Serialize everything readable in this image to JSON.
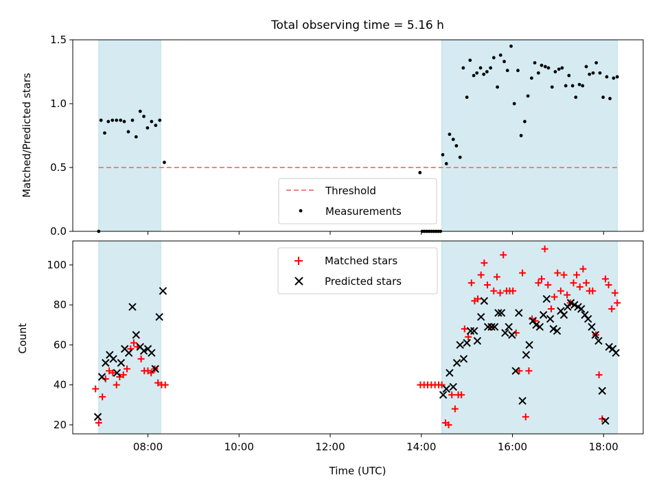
{
  "title": "Total observing time = 5.16 h",
  "chart_data": [
    {
      "type": "scatter",
      "ylabel": "Matched/Predicted stars",
      "xlabel": "",
      "xlim": [
        6.35,
        18.87
      ],
      "ylim": [
        0,
        1.5
      ],
      "yticks": [
        "0.0",
        "0.5",
        "1.0",
        "1.5"
      ],
      "shaded_intervals": [
        [
          6.92,
          8.28
        ],
        [
          14.45,
          18.3
        ]
      ],
      "shade_color": "#d5ebf1",
      "threshold": {
        "name": "Threshold",
        "y": 0.5,
        "x_range": [
          6.92,
          18.3
        ],
        "color": "#f08080"
      },
      "legend": {
        "placement": "lower-center",
        "entries": [
          "Threshold",
          "Measurements"
        ]
      },
      "series": [
        {
          "name": "Measurements",
          "color": "#000000",
          "x": [
            6.92,
            6.97,
            7.05,
            7.13,
            7.22,
            7.31,
            7.4,
            7.48,
            7.57,
            7.66,
            7.74,
            7.83,
            7.91,
            7.99,
            8.08,
            8.17,
            8.26,
            8.36,
            13.97,
            14.02,
            14.07,
            14.12,
            14.17,
            14.22,
            14.27,
            14.32,
            14.37,
            14.42,
            14.47,
            14.55,
            14.62,
            14.7,
            14.77,
            14.85,
            14.92,
            15.0,
            15.07,
            15.15,
            15.22,
            15.3,
            15.37,
            15.44,
            15.52,
            15.59,
            15.67,
            15.74,
            15.82,
            15.89,
            15.97,
            16.04,
            16.12,
            16.19,
            16.27,
            16.34,
            16.42,
            16.49,
            16.57,
            16.64,
            16.72,
            16.79,
            16.87,
            16.94,
            17.02,
            17.09,
            17.17,
            17.24,
            17.32,
            17.39,
            17.47,
            17.54,
            17.62,
            17.69,
            17.77,
            17.84,
            17.92,
            17.99,
            18.07,
            18.14,
            18.22,
            18.3
          ],
          "y": [
            0.0,
            0.87,
            0.77,
            0.86,
            0.87,
            0.87,
            0.87,
            0.86,
            0.78,
            0.87,
            0.74,
            0.94,
            0.9,
            0.81,
            0.86,
            0.83,
            0.87,
            0.54,
            0.46,
            0.0,
            0.0,
            0.0,
            0.0,
            0.0,
            0.0,
            0.0,
            0.0,
            0.0,
            0.6,
            0.53,
            0.76,
            0.72,
            0.67,
            0.58,
            1.28,
            1.05,
            1.34,
            1.22,
            1.24,
            1.28,
            1.23,
            1.25,
            1.28,
            1.36,
            1.13,
            1.38,
            1.33,
            1.26,
            1.45,
            1.0,
            1.26,
            0.75,
            0.86,
            1.06,
            1.2,
            1.32,
            1.24,
            1.3,
            1.29,
            1.28,
            1.13,
            1.25,
            1.27,
            1.28,
            1.14,
            1.22,
            1.14,
            1.05,
            1.15,
            1.14,
            1.29,
            1.23,
            1.24,
            1.32,
            1.24,
            1.05,
            1.21,
            1.04,
            1.2,
            1.21
          ],
          "x_fix": "note: last 5 reordered"
        }
      ]
    },
    {
      "type": "scatter",
      "ylabel": "Count",
      "xlabel": "Time (UTC)",
      "xlim": [
        6.35,
        18.87
      ],
      "ylim": [
        15.5,
        112
      ],
      "yticks": [
        "20",
        "40",
        "60",
        "80",
        "100"
      ],
      "xticks": [
        "08:00",
        "10:00",
        "12:00",
        "14:00",
        "16:00",
        "18:00"
      ],
      "shaded_intervals": [
        [
          6.92,
          8.28
        ],
        [
          14.45,
          18.3
        ]
      ],
      "legend": {
        "placement": "upper-center",
        "entries": [
          "Matched stars",
          "Predicted stars"
        ]
      },
      "series": [
        {
          "name": "Matched stars",
          "color": "#ff0000",
          "marker": "plus",
          "x": [
            6.85,
            6.92,
            7.0,
            7.07,
            7.15,
            7.23,
            7.31,
            7.38,
            7.46,
            7.54,
            7.62,
            7.69,
            7.77,
            7.85,
            7.92,
            8.0,
            8.07,
            8.15,
            8.22,
            8.3,
            8.38,
            13.98,
            14.06,
            14.14,
            14.22,
            14.3,
            14.38,
            14.45,
            14.53,
            14.6,
            14.67,
            14.74,
            14.81,
            14.88,
            14.95,
            15.03,
            15.1,
            15.17,
            15.24,
            15.31,
            15.38,
            15.45,
            15.52,
            15.59,
            15.66,
            15.73,
            15.8,
            15.87,
            15.94,
            16.01,
            16.08,
            16.15,
            16.22,
            16.29,
            16.36,
            16.43,
            16.5,
            16.57,
            16.64,
            16.71,
            16.78,
            16.85,
            16.92,
            16.99,
            17.06,
            17.13,
            17.2,
            17.27,
            17.34,
            17.41,
            17.48,
            17.55,
            17.62,
            17.69,
            17.76,
            17.83,
            17.9,
            17.97,
            18.04,
            18.11,
            18.18,
            18.25,
            18.3
          ],
          "y": [
            38,
            21,
            34,
            43,
            47,
            46,
            40,
            44,
            45,
            48,
            58,
            61,
            59,
            53,
            47,
            47,
            46,
            48,
            41,
            40,
            40,
            40,
            40,
            40,
            40,
            40,
            40,
            40,
            21,
            20,
            35,
            28,
            35,
            35,
            68,
            64,
            91,
            82,
            83,
            95,
            101,
            90,
            69,
            87,
            94,
            86,
            105,
            87,
            87,
            87,
            66,
            47,
            96,
            24,
            47,
            73,
            72,
            91,
            93,
            108,
            90,
            78,
            84,
            96,
            87,
            95,
            85,
            81,
            91,
            95,
            89,
            98,
            91,
            87,
            87,
            65,
            45,
            23,
            93,
            90,
            78,
            86,
            81
          ]
        },
        {
          "name": "Predicted stars",
          "color": "#000000",
          "marker": "x",
          "x": [
            6.9,
            6.99,
            7.07,
            7.16,
            7.24,
            7.32,
            7.41,
            7.49,
            7.58,
            7.66,
            7.74,
            7.83,
            7.91,
            8.0,
            8.08,
            8.16,
            8.25,
            8.33,
            14.48,
            14.55,
            14.62,
            14.7,
            14.78,
            14.85,
            14.93,
            15.0,
            15.08,
            15.16,
            15.23,
            15.31,
            15.38,
            15.46,
            15.54,
            15.61,
            15.69,
            15.76,
            15.84,
            15.92,
            15.99,
            16.07,
            16.14,
            16.22,
            16.3,
            16.37,
            16.45,
            16.52,
            16.6,
            16.68,
            16.75,
            16.83,
            16.9,
            16.98,
            17.06,
            17.13,
            17.21,
            17.28,
            17.36,
            17.44,
            17.51,
            17.59,
            17.66,
            17.74,
            17.82,
            17.89,
            17.97,
            18.04,
            18.12,
            18.2,
            18.27
          ],
          "y": [
            24,
            44,
            51,
            55,
            53,
            46,
            51,
            58,
            56,
            79,
            65,
            59,
            57,
            58,
            56,
            48,
            74,
            87,
            35,
            38,
            46,
            39,
            51,
            60,
            53,
            61,
            67,
            67,
            62,
            74,
            82,
            69,
            69,
            69,
            76,
            76,
            66,
            69,
            65,
            47,
            76,
            32,
            55,
            60,
            72,
            70,
            69,
            75,
            83,
            73,
            68,
            67,
            77,
            75,
            79,
            81,
            80,
            79,
            78,
            75,
            73,
            69,
            65,
            62,
            37,
            22,
            59,
            58,
            56
          ]
        }
      ]
    }
  ]
}
